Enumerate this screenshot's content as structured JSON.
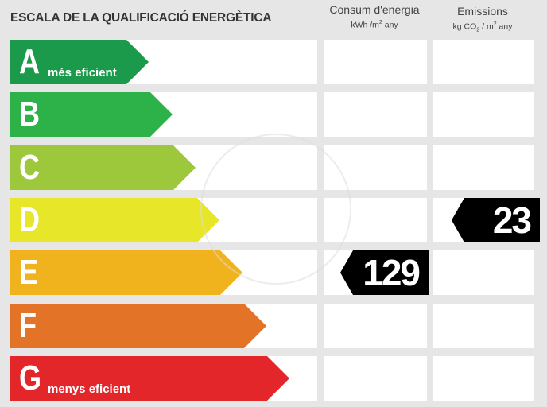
{
  "title": "ESCALA DE LA QUALIFICACIÓ ENERGÈTICA",
  "columns": {
    "consum": {
      "label": "Consum d'energia",
      "unit_pre": "kWh /m",
      "unit_sup": "2",
      "unit_post": " any"
    },
    "emissions": {
      "label": "Emissions",
      "unit_pre": "kg CO",
      "unit_sub": "2",
      "unit_mid": " / m",
      "unit_sup": "2",
      "unit_post": " any"
    }
  },
  "ratings": [
    {
      "letter": "A",
      "label": "més eficient",
      "color": "#1a9a4a"
    },
    {
      "letter": "B",
      "label": "",
      "color": "#2db24a"
    },
    {
      "letter": "C",
      "label": "",
      "color": "#9ec83b"
    },
    {
      "letter": "D",
      "label": "",
      "color": "#e7e629"
    },
    {
      "letter": "E",
      "label": "",
      "color": "#f0b21d"
    },
    {
      "letter": "F",
      "label": "",
      "color": "#e27327"
    },
    {
      "letter": "G",
      "label": "menys eficient",
      "color": "#e3262a"
    }
  ],
  "consum_value": "129",
  "consum_rating": "E",
  "emissions_value": "23",
  "emissions_rating": "D"
}
